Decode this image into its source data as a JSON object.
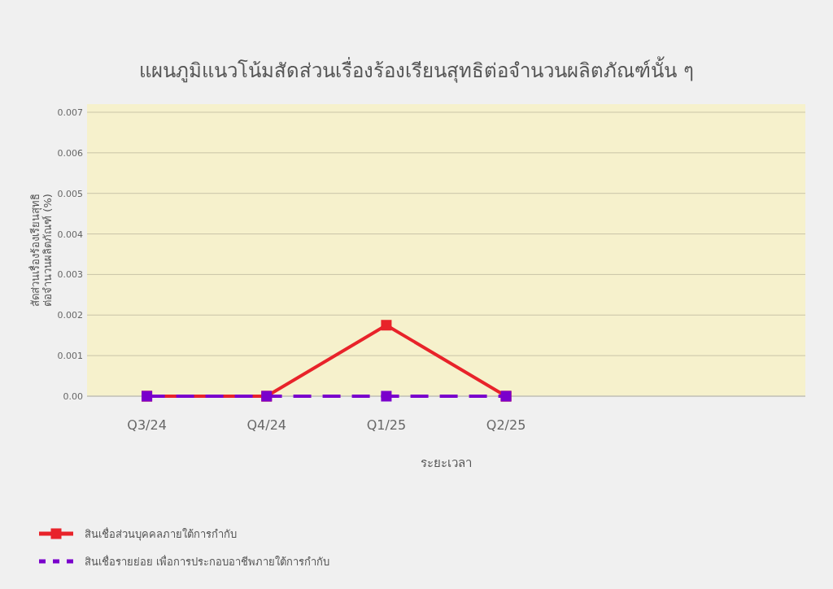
{
  "chart_data": {
    "type": "line",
    "title": "แผนภูมิแนวโน้มสัดส่วนเรื่องร้องเรียนสุทธิต่อจำนวนผลิตภัณฑ์นั้น ๆ",
    "xlabel": "ระยะเวลา",
    "ylabel": "สัดส่วนเรื่องร้องเรียนสุทธิ\nต่อจำนวนผลิตภัณฑ์ (%)",
    "categories": [
      "Q3/24",
      "Q4/24",
      "Q1/25",
      "Q2/25",
      null,
      null
    ],
    "series": [
      {
        "name": "สินเชื่อส่วนบุคคลภายใต้การกำกับ",
        "color": "#e8232a",
        "values": [
          0,
          0,
          0.00175,
          0,
          null,
          null
        ],
        "line_style": "solid",
        "marker": "square"
      },
      {
        "name": "สินเชื่อรายย่อย เพื่อการประกอบอาชีพภายใต้การกำกับ",
        "color": "#7a00cc",
        "values": [
          0,
          0,
          0,
          0,
          null,
          null
        ],
        "line_style": "dashed",
        "marker": "square"
      }
    ],
    "ylim": [
      0,
      0.0072
    ],
    "yticks": [
      {
        "value": 0,
        "label": "0.00"
      },
      0.001,
      0.002,
      0.003,
      0.004,
      0.005,
      0.006,
      0.007
    ],
    "grid": "y",
    "legend": "bottom left"
  }
}
